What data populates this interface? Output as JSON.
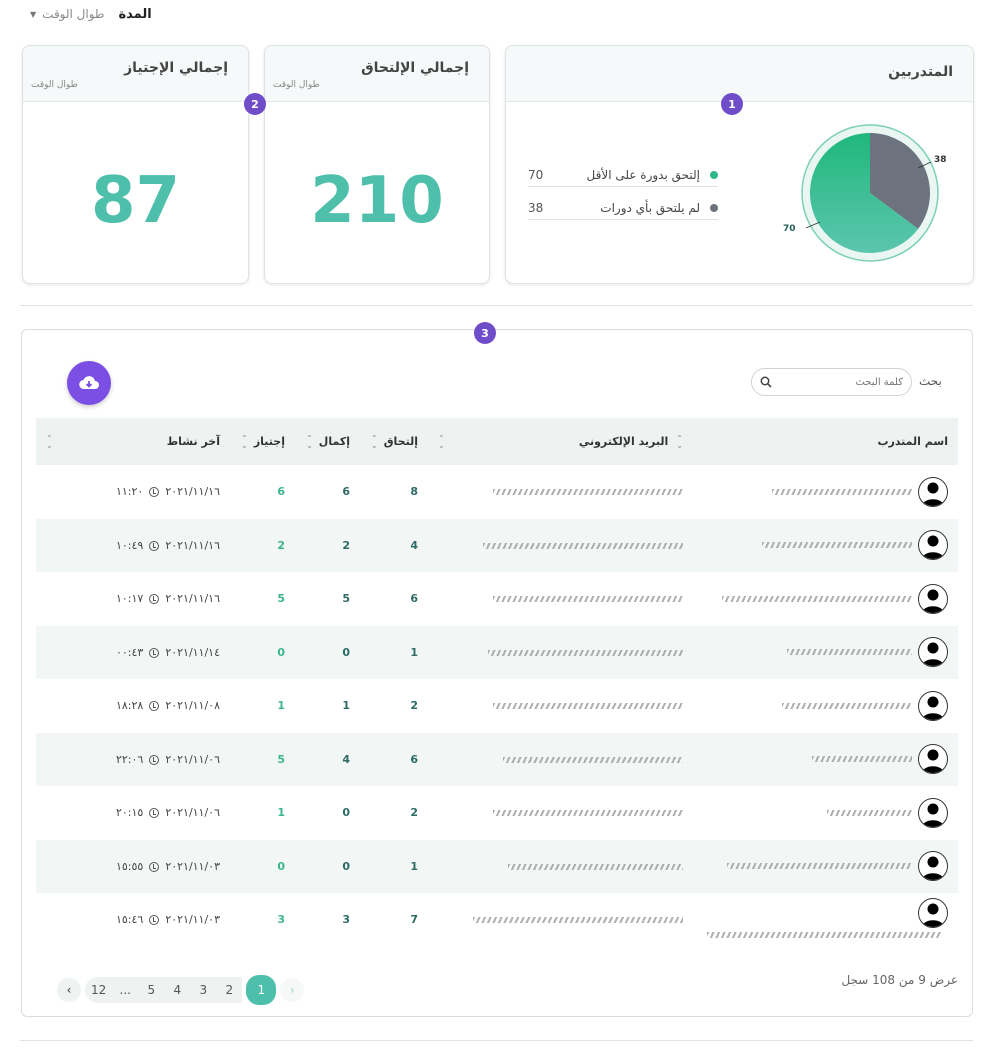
{
  "filter": {
    "title": "المدة",
    "value": "طوال الوقت"
  },
  "cards": {
    "trainees": {
      "title": "المتدربين",
      "badge": "1",
      "legend": [
        {
          "label": "إلتحق بدورة على الأقل",
          "value": "70",
          "color": "#2fb987"
        },
        {
          "label": "لم يلتحق بأي دورات",
          "value": "38",
          "color": "#6c727e"
        }
      ],
      "pie_labels": {
        "a": "70",
        "b": "38"
      }
    },
    "enrollments": {
      "title": "إجمالي الإلتحاق",
      "subtitle": "طوال الوقت",
      "value": "210",
      "badge": "2"
    },
    "passes": {
      "title": "إجمالي الإجتياز",
      "subtitle": "طوال الوقت",
      "value": "87"
    }
  },
  "chart_data": {
    "type": "pie",
    "categories": [
      "إلتحق بدورة على الأقل",
      "لم يلتحق بأي دورات"
    ],
    "values": [
      70,
      38
    ],
    "colors": [
      "#2fb987",
      "#6c727e"
    ]
  },
  "table_section": {
    "badge": "3",
    "search_label": "بحث",
    "search_placeholder": "كلمة البحث",
    "columns": {
      "name": "اسم المتدرب",
      "email": "البريد الإلكتروني",
      "enrolled": "إلتحاق",
      "completed": "إكمال",
      "passed": "إجتياز",
      "last_activity": "آخر نشاط"
    },
    "rows": [
      {
        "enrolled": "8",
        "completed": "6",
        "passed": "6",
        "date": "٢٠٢١/١١/١٦",
        "time": "١١:٢٠"
      },
      {
        "enrolled": "4",
        "completed": "2",
        "passed": "2",
        "date": "٢٠٢١/١١/١٦",
        "time": "١٠:٤٩"
      },
      {
        "enrolled": "6",
        "completed": "5",
        "passed": "5",
        "date": "٢٠٢١/١١/١٦",
        "time": "١٠:١٧"
      },
      {
        "enrolled": "1",
        "completed": "0",
        "passed": "0",
        "date": "٢٠٢١/١١/١٤",
        "time": "٠٠:٤٣"
      },
      {
        "enrolled": "2",
        "completed": "1",
        "passed": "1",
        "date": "٢٠٢١/١١/٠٨",
        "time": "١٨:٢٨"
      },
      {
        "enrolled": "6",
        "completed": "4",
        "passed": "5",
        "date": "٢٠٢١/١١/٠٦",
        "time": "٢٢:٠٦"
      },
      {
        "enrolled": "2",
        "completed": "0",
        "passed": "1",
        "date": "٢٠٢١/١١/٠٦",
        "time": "٢٠:١٥"
      },
      {
        "enrolled": "1",
        "completed": "0",
        "passed": "0",
        "date": "٢٠٢١/١١/٠٣",
        "time": "١٥:٥٥"
      },
      {
        "enrolled": "7",
        "completed": "3",
        "passed": "3",
        "date": "٢٠٢١/١١/٠٣",
        "time": "١٥:٤٦"
      }
    ],
    "pagination": {
      "pages": [
        "12",
        "...",
        "5",
        "4",
        "3",
        "2",
        "1"
      ],
      "record_count": "عرض 9 من 108 سجل",
      "prev": "‹",
      "next": "›"
    }
  }
}
